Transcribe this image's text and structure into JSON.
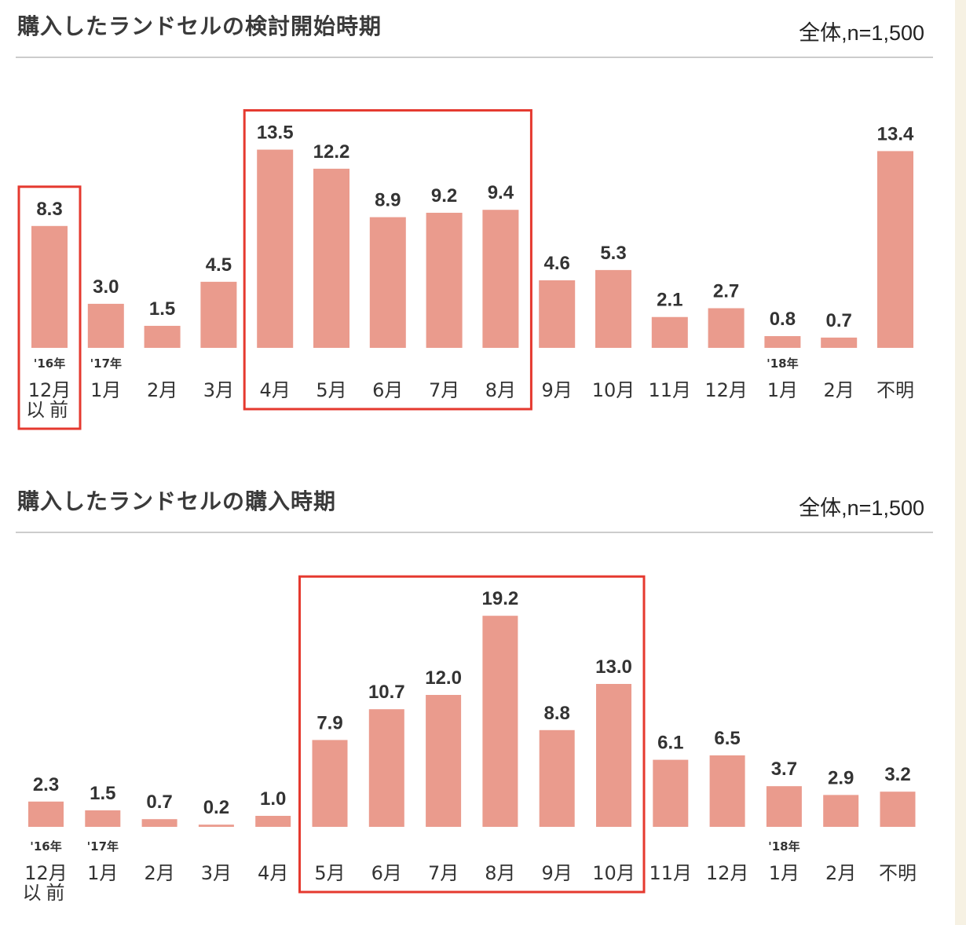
{
  "colors": {
    "bar": "#ea9b8d",
    "highlight": "#e5392f",
    "text": "#333333"
  },
  "chart_data": [
    {
      "type": "bar",
      "title": "購入したランドセルの検討開始時期",
      "note": "全体,n=1,500",
      "categories": [
        "12月以前",
        "1月",
        "2月",
        "3月",
        "4月",
        "5月",
        "6月",
        "7月",
        "8月",
        "9月",
        "10月",
        "11月",
        "12月",
        "1月",
        "2月",
        "不明"
      ],
      "year_labels": [
        "'16年",
        "'17年",
        "",
        "",
        "",
        "",
        "",
        "",
        "",
        "",
        "",
        "",
        "",
        "'18年",
        "",
        ""
      ],
      "values": [
        8.3,
        3.0,
        1.5,
        4.5,
        13.5,
        12.2,
        8.9,
        9.2,
        9.4,
        4.6,
        5.3,
        2.1,
        2.7,
        0.8,
        0.7,
        13.4
      ],
      "value_labels": [
        "8.3",
        "3.0",
        "1.5",
        "4.5",
        "13.5",
        "12.2",
        "8.9",
        "9.2",
        "9.4",
        "4.6",
        "5.3",
        "2.1",
        "2.7",
        "0.8",
        "0.7",
        "13.4"
      ],
      "highlights": [
        [
          0,
          0
        ],
        [
          4,
          8
        ]
      ],
      "ylim": [
        0,
        15
      ]
    },
    {
      "type": "bar",
      "title": "購入したランドセルの購入時期",
      "note": "全体,n=1,500",
      "categories": [
        "12月以前",
        "1月",
        "2月",
        "3月",
        "4月",
        "5月",
        "6月",
        "7月",
        "8月",
        "9月",
        "10月",
        "11月",
        "12月",
        "1月",
        "2月",
        "不明"
      ],
      "year_labels": [
        "'16年",
        "'17年",
        "",
        "",
        "",
        "",
        "",
        "",
        "",
        "",
        "",
        "",
        "",
        "'18年",
        "",
        ""
      ],
      "values": [
        2.3,
        1.5,
        0.7,
        0.2,
        1.0,
        7.9,
        10.7,
        12.0,
        19.2,
        8.8,
        13.0,
        6.1,
        6.5,
        3.7,
        2.9,
        3.2
      ],
      "value_labels": [
        "2.3",
        "1.5",
        "0.7",
        "0.2",
        "1.0",
        "7.9",
        "10.7",
        "12.0",
        "19.2",
        "8.8",
        "13.0",
        "6.1",
        "6.5",
        "3.7",
        "2.9",
        "3.2"
      ],
      "highlights": [
        [
          5,
          10
        ]
      ],
      "ylim": [
        0,
        20
      ]
    }
  ]
}
